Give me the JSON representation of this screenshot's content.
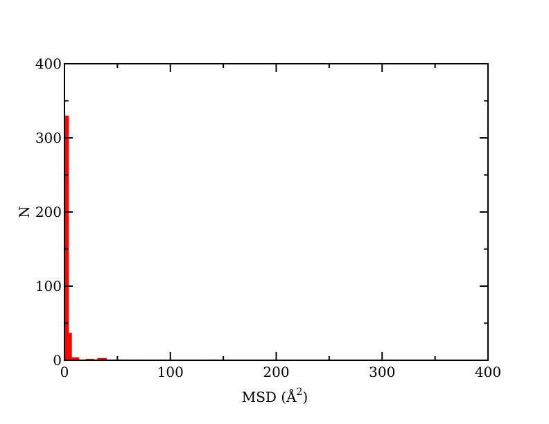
{
  "chart_data": {
    "type": "bar",
    "title": "",
    "xlabel": "MSD (Å",
    "xlabel_sup": "2",
    "xlabel_close": ")",
    "ylabel": "N",
    "xlim": [
      0,
      400
    ],
    "ylim": [
      0,
      400
    ],
    "x_ticks": [
      0,
      100,
      200,
      300,
      400
    ],
    "y_ticks": [
      0,
      100,
      200,
      300,
      400
    ],
    "x_minor_ticks": [
      50,
      150,
      250,
      350
    ],
    "y_minor_ticks": [
      50,
      150,
      250,
      350
    ],
    "grid": false,
    "bar_color": "#ff0000",
    "series": [
      {
        "bins": [
          {
            "x0": 0,
            "x1": 4,
            "value": 330
          },
          {
            "x0": 4,
            "x1": 7,
            "value": 37
          },
          {
            "x0": 7,
            "x1": 14,
            "value": 4
          },
          {
            "x0": 14,
            "x1": 20,
            "value": 1
          },
          {
            "x0": 20,
            "x1": 28,
            "value": 2
          },
          {
            "x0": 28,
            "x1": 31,
            "value": 1
          },
          {
            "x0": 31,
            "x1": 40,
            "value": 3
          },
          {
            "x0": 40,
            "x1": 46,
            "value": 1
          },
          {
            "x0": 66,
            "x1": 74,
            "value": 1
          },
          {
            "x0": 136,
            "x1": 144,
            "value": 1
          }
        ]
      }
    ]
  }
}
